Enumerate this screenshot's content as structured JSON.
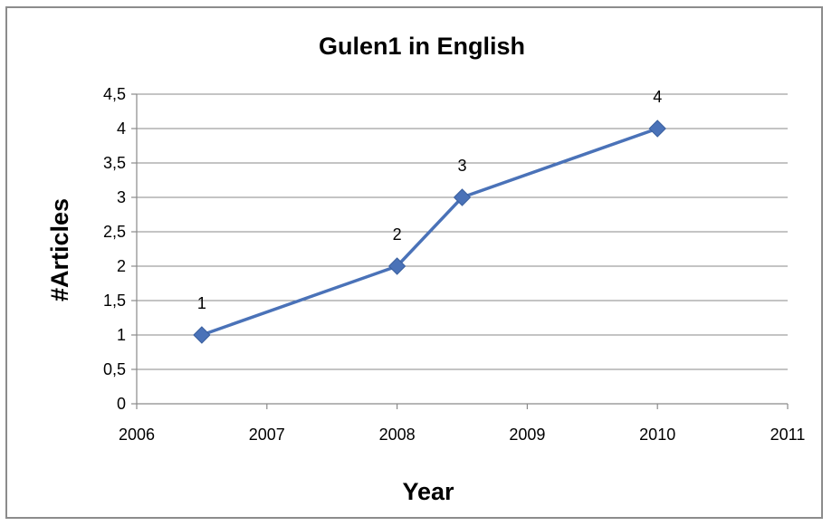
{
  "chart_data": {
    "type": "scatter",
    "title": "Gulen1 in English",
    "xlabel": "Year",
    "ylabel": "#Articles",
    "xlim": [
      2006,
      2011
    ],
    "ylim": [
      0,
      4.5
    ],
    "x_ticks": [
      "2006",
      "2007",
      "2008",
      "2009",
      "2010",
      "2011"
    ],
    "y_ticks": [
      "0",
      "0,5",
      "1",
      "1,5",
      "2",
      "2,5",
      "3",
      "3,5",
      "4",
      "4,5"
    ],
    "grid": true,
    "legend": "none",
    "series": [
      {
        "x": [
          2006.5,
          2008,
          2008.5,
          2010
        ],
        "y": [
          1,
          2,
          3,
          4
        ],
        "data_labels": [
          "1",
          "2",
          "3",
          "4"
        ],
        "line": true,
        "marker": "diamond",
        "color": "#4a72b8"
      }
    ]
  }
}
